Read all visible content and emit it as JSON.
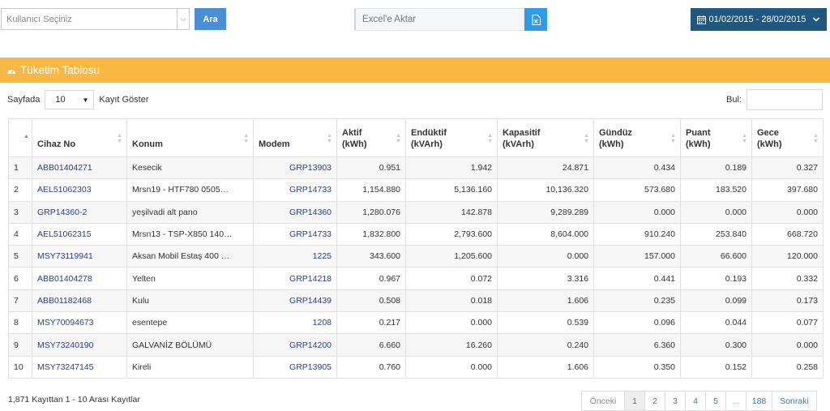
{
  "toolbar": {
    "user_select_placeholder": "Kullanıcı Seçiniz",
    "search_button": "Ara",
    "excel_label": "Excel'e Aktar",
    "date_range": "01/02/2015 - 28/02/2015"
  },
  "panel": {
    "title": "Tüketim Tablosu"
  },
  "length": {
    "prefix": "Sayfada",
    "value": "10",
    "suffix": "Kayıt Göster"
  },
  "filter": {
    "label": "Bul:",
    "value": ""
  },
  "table": {
    "headers": {
      "index": "",
      "device": "Cihaz No",
      "location": "Konum",
      "modem": "Modem",
      "aktif": "Aktif",
      "aktif_unit": "(kWh)",
      "enduktif": "Endüktif",
      "enduktif_unit": "(kVArh)",
      "kapasitif": "Kapasitif",
      "kapasitif_unit": "(kVArh)",
      "gunduz": "Gündüz",
      "gunduz_unit": "(kWh)",
      "puant": "Puant",
      "puant_unit": "(kWh)",
      "gece": "Gece",
      "gece_unit": "(kWh)"
    },
    "rows": [
      {
        "index": "1",
        "device": "ABB01404271",
        "location": "Kesecik",
        "modem": "GRP13903",
        "aktif": "0.951",
        "enduktif": "1.942",
        "kapasitif": "24.871",
        "gunduz": "0.434",
        "puant": "0.189",
        "gece": "0.327"
      },
      {
        "index": "2",
        "device": "AEL51062303",
        "location": "Mrsn19 - HTF780 0505…",
        "modem": "GRP14733",
        "aktif": "1,154.880",
        "enduktif": "5,136.160",
        "kapasitif": "10,136.320",
        "gunduz": "573.680",
        "puant": "183.520",
        "gece": "397.680"
      },
      {
        "index": "3",
        "device": "GRP14360-2",
        "location": "yeşilvadi alt pano",
        "modem": "GRP14360",
        "aktif": "1,280.076",
        "enduktif": "142.878",
        "kapasitif": "9,289.289",
        "gunduz": "0.000",
        "puant": "0.000",
        "gece": "0.000"
      },
      {
        "index": "4",
        "device": "AEL51062315",
        "location": "Mrsn13 - TSP-X850 140…",
        "modem": "GRP14733",
        "aktif": "1,832.800",
        "enduktif": "2,793.600",
        "kapasitif": "8,604.000",
        "gunduz": "910.240",
        "puant": "253.840",
        "gece": "668.720"
      },
      {
        "index": "5",
        "device": "MSY73119941",
        "location": "Aksan Mobil Estaş 400 …",
        "modem": "1225",
        "aktif": "343.600",
        "enduktif": "1,205.600",
        "kapasitif": "0.000",
        "gunduz": "157.000",
        "puant": "66.600",
        "gece": "120.000"
      },
      {
        "index": "6",
        "device": "ABB01404278",
        "location": "Yelten",
        "modem": "GRP14218",
        "aktif": "0.967",
        "enduktif": "0.072",
        "kapasitif": "3.316",
        "gunduz": "0.441",
        "puant": "0.193",
        "gece": "0.332"
      },
      {
        "index": "7",
        "device": "ABB01182468",
        "location": "Kulu",
        "modem": "GRP14439",
        "aktif": "0.508",
        "enduktif": "0.018",
        "kapasitif": "1.606",
        "gunduz": "0.235",
        "puant": "0.099",
        "gece": "0.173"
      },
      {
        "index": "8",
        "device": "MSY70094673",
        "location": "esentepe",
        "modem": "1208",
        "aktif": "0.217",
        "enduktif": "0.000",
        "kapasitif": "0.539",
        "gunduz": "0.096",
        "puant": "0.044",
        "gece": "0.077"
      },
      {
        "index": "9",
        "device": "MSY73240190",
        "location": "GALVANİZ BÖLÜMÜ",
        "modem": "GRP14200",
        "aktif": "6.660",
        "enduktif": "16.260",
        "kapasitif": "0.240",
        "gunduz": "6.360",
        "puant": "0.300",
        "gece": "0.000"
      },
      {
        "index": "10",
        "device": "MSY73247145",
        "location": "Kireli",
        "modem": "GRP13905",
        "aktif": "0.760",
        "enduktif": "0.000",
        "kapasitif": "1.606",
        "gunduz": "0.350",
        "puant": "0.152",
        "gece": "0.258"
      }
    ]
  },
  "footer": {
    "info": "1,871 Kayıttan 1 - 10 Arası Kayıtlar",
    "pagination": [
      {
        "label": "Önceki",
        "state": "disabled",
        "w": 52
      },
      {
        "label": "1",
        "state": "active",
        "w": 25
      },
      {
        "label": "2",
        "state": "normal",
        "w": 25
      },
      {
        "label": "3",
        "state": "normal",
        "w": 25
      },
      {
        "label": "4",
        "state": "normal",
        "w": 25
      },
      {
        "label": "5",
        "state": "normal",
        "w": 25
      },
      {
        "label": "...",
        "state": "disabled",
        "w": 25
      },
      {
        "label": "188",
        "state": "normal",
        "w": 32
      },
      {
        "label": "Sonraki",
        "state": "normal",
        "w": 55
      }
    ]
  },
  "colors": {
    "panel_header": "#f9b843",
    "search_button": "#4a8ed6",
    "excel_button": "#2e9ce8",
    "date_button": "#1e577f",
    "link_text": "#2a3f8a"
  }
}
